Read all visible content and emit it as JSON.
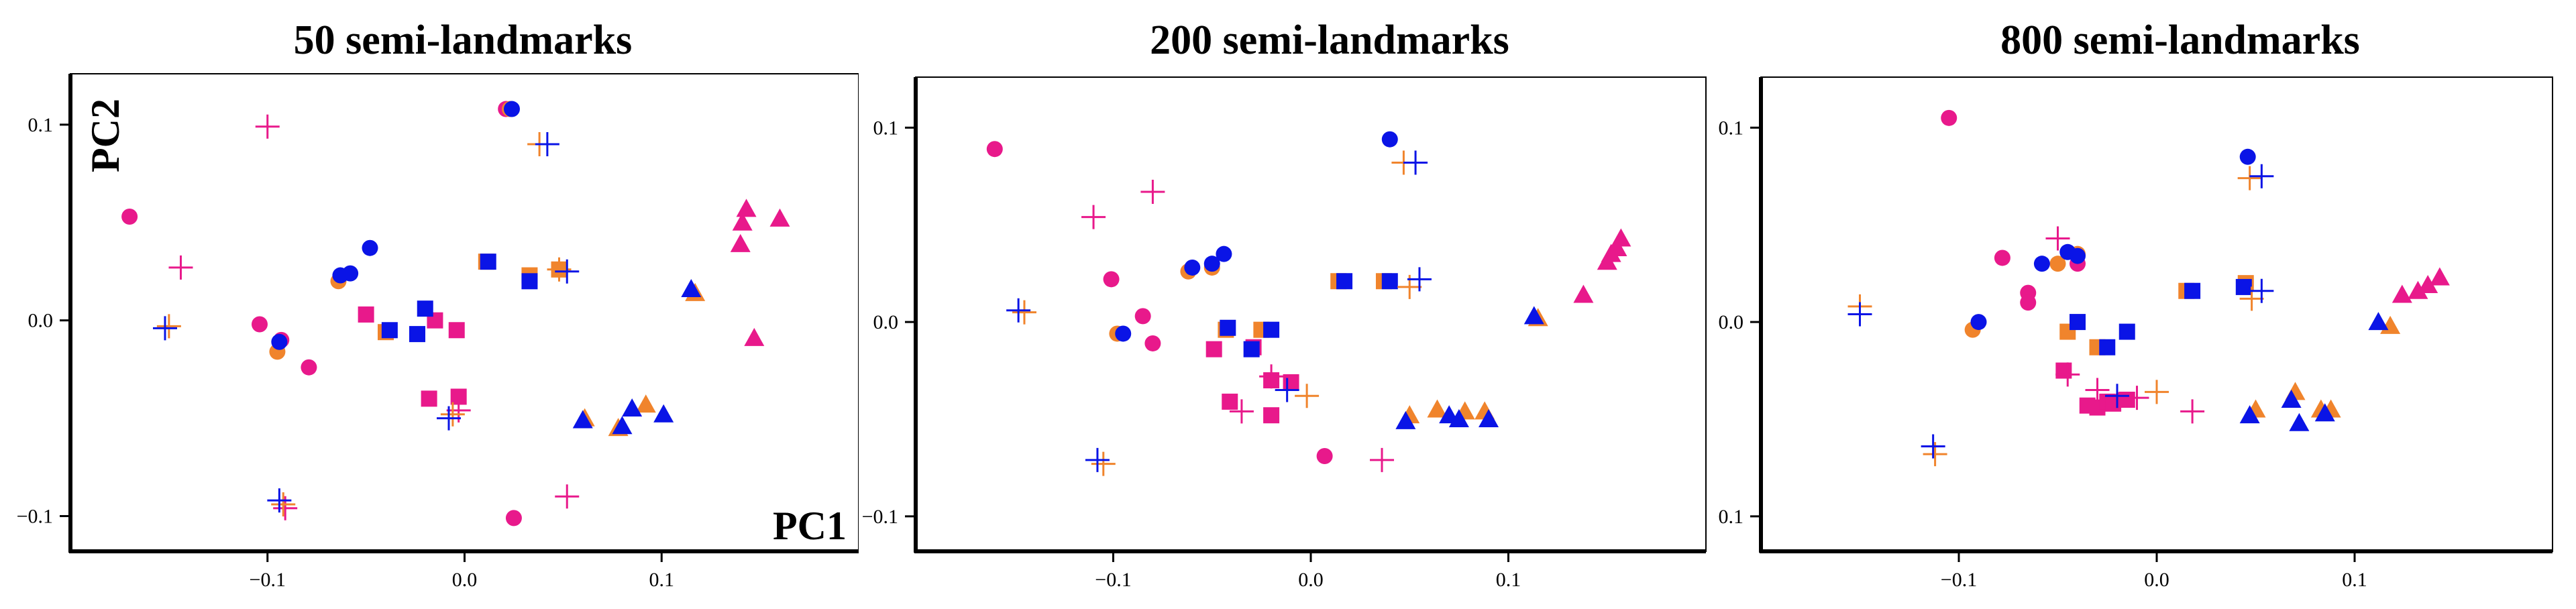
{
  "colors": {
    "pink": "#e8198b",
    "orange": "#f0842c",
    "blue": "#0a14e6"
  },
  "chart_data": [
    {
      "type": "scatter",
      "title": "50 semi-landmarks",
      "xlabel": "PC1",
      "ylabel": "PC2",
      "xlim": [
        -0.2,
        0.2
      ],
      "ylim": [
        -0.118,
        0.126
      ],
      "xticks": [
        "−0.1",
        "0.0",
        "0.1"
      ],
      "xtick_values": [
        -0.1,
        0.0,
        0.1
      ],
      "yticks": [
        "−0.1",
        "0.0",
        "0.1"
      ],
      "ytick_values": [
        -0.1,
        0.0,
        0.1
      ],
      "grid": false,
      "series": [
        {
          "shape": "circle",
          "color": "pink",
          "points": [
            [
              -0.17,
              0.053
            ],
            [
              -0.104,
              -0.002
            ],
            [
              -0.093,
              -0.01
            ],
            [
              -0.079,
              -0.024
            ],
            [
              0.025,
              -0.101
            ],
            [
              0.021,
              0.108
            ]
          ]
        },
        {
          "shape": "circle",
          "color": "orange",
          "points": [
            [
              -0.095,
              -0.016
            ],
            [
              -0.064,
              0.02
            ],
            [
              0.023,
              0.108
            ]
          ]
        },
        {
          "shape": "circle",
          "color": "blue",
          "points": [
            [
              -0.094,
              -0.011
            ],
            [
              -0.063,
              0.023
            ],
            [
              -0.058,
              0.024
            ],
            [
              -0.048,
              0.037
            ],
            [
              0.024,
              0.108
            ]
          ]
        },
        {
          "shape": "square",
          "color": "pink",
          "points": [
            [
              -0.05,
              0.003
            ],
            [
              -0.018,
              -0.04
            ],
            [
              -0.004,
              -0.005
            ],
            [
              -0.003,
              -0.039
            ],
            [
              -0.015,
              0.0
            ]
          ]
        },
        {
          "shape": "square",
          "color": "orange",
          "points": [
            [
              -0.04,
              -0.006
            ],
            [
              0.011,
              0.03
            ],
            [
              0.033,
              0.023
            ],
            [
              0.048,
              0.026
            ]
          ]
        },
        {
          "shape": "square",
          "color": "blue",
          "points": [
            [
              -0.038,
              -0.005
            ],
            [
              -0.024,
              -0.007
            ],
            [
              -0.02,
              0.006
            ],
            [
              0.012,
              0.03
            ],
            [
              0.033,
              0.02
            ]
          ]
        },
        {
          "shape": "triangle",
          "color": "pink",
          "points": [
            [
              0.14,
              0.039
            ],
            [
              0.141,
              0.05
            ],
            [
              0.143,
              0.057
            ],
            [
              0.147,
              -0.009
            ],
            [
              0.16,
              0.052
            ]
          ]
        },
        {
          "shape": "triangle",
          "color": "orange",
          "points": [
            [
              0.061,
              -0.05
            ],
            [
              0.078,
              -0.055
            ],
            [
              0.092,
              -0.043
            ],
            [
              0.117,
              0.014
            ]
          ]
        },
        {
          "shape": "triangle",
          "color": "blue",
          "points": [
            [
              0.06,
              -0.051
            ],
            [
              0.08,
              -0.054
            ],
            [
              0.085,
              -0.045
            ],
            [
              0.101,
              -0.048
            ],
            [
              0.115,
              0.016
            ]
          ]
        },
        {
          "shape": "cross",
          "color": "pink",
          "points": [
            [
              -0.1,
              0.099
            ],
            [
              -0.144,
              0.027
            ],
            [
              0.052,
              -0.09
            ],
            [
              -0.091,
              -0.096
            ],
            [
              -0.003,
              -0.046
            ]
          ]
        },
        {
          "shape": "cross",
          "color": "orange",
          "points": [
            [
              -0.15,
              -0.003
            ],
            [
              -0.092,
              -0.094
            ],
            [
              -0.006,
              -0.048
            ],
            [
              0.038,
              0.09
            ],
            [
              0.048,
              0.026
            ]
          ]
        },
        {
          "shape": "cross",
          "color": "blue",
          "points": [
            [
              -0.152,
              -0.004
            ],
            [
              -0.094,
              -0.092
            ],
            [
              -0.008,
              -0.05
            ],
            [
              0.042,
              0.09
            ],
            [
              0.052,
              0.025
            ]
          ]
        }
      ]
    },
    {
      "type": "scatter",
      "title": "200 semi-landmarks",
      "xlabel": "",
      "ylabel": "",
      "xlim": [
        -0.2,
        0.2
      ],
      "ylim": [
        -0.118,
        0.126
      ],
      "xticks": [
        "−0.1",
        "0.0",
        "0.1"
      ],
      "xtick_values": [
        -0.1,
        0.0,
        0.1
      ],
      "yticks": [
        "−0.1",
        "0.0",
        "0.1"
      ],
      "ytick_values": [
        -0.1,
        0.0,
        0.1
      ],
      "grid": false,
      "series": [
        {
          "shape": "circle",
          "color": "pink",
          "points": [
            [
              -0.16,
              0.089
            ],
            [
              -0.101,
              0.022
            ],
            [
              -0.085,
              0.003
            ],
            [
              -0.08,
              -0.011
            ],
            [
              0.007,
              -0.069
            ]
          ]
        },
        {
          "shape": "circle",
          "color": "orange",
          "points": [
            [
              -0.098,
              -0.006
            ],
            [
              -0.062,
              0.026
            ],
            [
              -0.05,
              0.028
            ]
          ]
        },
        {
          "shape": "circle",
          "color": "blue",
          "points": [
            [
              -0.095,
              -0.006
            ],
            [
              -0.06,
              0.028
            ],
            [
              -0.05,
              0.03
            ],
            [
              -0.044,
              0.035
            ],
            [
              0.04,
              0.094
            ]
          ]
        },
        {
          "shape": "square",
          "color": "pink",
          "points": [
            [
              -0.049,
              -0.014
            ],
            [
              -0.041,
              -0.041
            ],
            [
              -0.029,
              -0.013
            ],
            [
              -0.02,
              -0.03
            ],
            [
              -0.02,
              -0.048
            ],
            [
              -0.01,
              -0.031
            ]
          ]
        },
        {
          "shape": "square",
          "color": "orange",
          "points": [
            [
              -0.043,
              -0.004
            ],
            [
              -0.025,
              -0.004
            ],
            [
              0.014,
              0.021
            ],
            [
              0.037,
              0.021
            ]
          ]
        },
        {
          "shape": "square",
          "color": "blue",
          "points": [
            [
              -0.042,
              -0.003
            ],
            [
              -0.03,
              -0.014
            ],
            [
              -0.02,
              -0.004
            ],
            [
              0.017,
              0.021
            ],
            [
              0.04,
              0.021
            ]
          ]
        },
        {
          "shape": "triangle",
          "color": "pink",
          "points": [
            [
              0.138,
              0.014
            ],
            [
              0.15,
              0.031
            ],
            [
              0.152,
              0.035
            ],
            [
              0.155,
              0.038
            ],
            [
              0.157,
              0.043
            ]
          ]
        },
        {
          "shape": "triangle",
          "color": "orange",
          "points": [
            [
              0.05,
              -0.048
            ],
            [
              0.064,
              -0.045
            ],
            [
              0.078,
              -0.046
            ],
            [
              0.088,
              -0.046
            ],
            [
              0.115,
              0.002
            ]
          ]
        },
        {
          "shape": "triangle",
          "color": "blue",
          "points": [
            [
              0.048,
              -0.051
            ],
            [
              0.07,
              -0.048
            ],
            [
              0.075,
              -0.05
            ],
            [
              0.09,
              -0.05
            ],
            [
              0.113,
              0.003
            ]
          ]
        },
        {
          "shape": "cross",
          "color": "pink",
          "points": [
            [
              -0.11,
              0.054
            ],
            [
              -0.08,
              0.067
            ],
            [
              -0.035,
              -0.046
            ],
            [
              -0.02,
              -0.028
            ],
            [
              0.036,
              -0.071
            ]
          ]
        },
        {
          "shape": "cross",
          "color": "orange",
          "points": [
            [
              -0.145,
              0.005
            ],
            [
              -0.105,
              -0.073
            ],
            [
              -0.002,
              -0.038
            ],
            [
              0.047,
              0.082
            ],
            [
              0.05,
              0.018
            ]
          ]
        },
        {
          "shape": "cross",
          "color": "blue",
          "points": [
            [
              -0.148,
              0.006
            ],
            [
              -0.108,
              -0.071
            ],
            [
              -0.012,
              -0.035
            ],
            [
              0.053,
              0.082
            ],
            [
              0.055,
              0.022
            ]
          ]
        }
      ]
    },
    {
      "type": "scatter",
      "title": "800 semi-landmarks",
      "xlabel": "",
      "ylabel": "",
      "xlim": [
        -0.2,
        0.2
      ],
      "ylim": [
        -0.118,
        0.126
      ],
      "xticks": [
        "−0.1",
        "0.0",
        "0.1"
      ],
      "xtick_values": [
        -0.1,
        0.0,
        0.1
      ],
      "yticks": [
        "−0.1",
        "0.0",
        "0.1"
      ],
      "ytick_values": [
        -0.1,
        0.0,
        0.1
      ],
      "grid": false,
      "series": [
        {
          "shape": "circle",
          "color": "pink",
          "points": [
            [
              -0.105,
              0.105
            ],
            [
              -0.065,
              0.015
            ],
            [
              -0.065,
              0.01
            ],
            [
              -0.078,
              0.033
            ],
            [
              -0.04,
              0.03
            ],
            [
              -0.018,
              -0.04
            ]
          ]
        },
        {
          "shape": "circle",
          "color": "orange",
          "points": [
            [
              -0.093,
              -0.004
            ],
            [
              -0.05,
              0.03
            ],
            [
              -0.04,
              0.035
            ]
          ]
        },
        {
          "shape": "circle",
          "color": "blue",
          "points": [
            [
              -0.09,
              0.0
            ],
            [
              -0.058,
              0.03
            ],
            [
              -0.045,
              0.036
            ],
            [
              -0.04,
              0.034
            ],
            [
              0.046,
              0.085
            ]
          ]
        },
        {
          "shape": "square",
          "color": "pink",
          "points": [
            [
              -0.047,
              -0.025
            ],
            [
              -0.035,
              -0.043
            ],
            [
              -0.03,
              -0.044
            ],
            [
              -0.025,
              -0.041
            ],
            [
              -0.022,
              -0.042
            ],
            [
              -0.015,
              -0.04
            ]
          ]
        },
        {
          "shape": "square",
          "color": "orange",
          "points": [
            [
              -0.045,
              -0.005
            ],
            [
              -0.03,
              -0.013
            ],
            [
              0.015,
              0.016
            ],
            [
              0.045,
              0.02
            ]
          ]
        },
        {
          "shape": "square",
          "color": "blue",
          "points": [
            [
              -0.04,
              0.0
            ],
            [
              -0.025,
              -0.013
            ],
            [
              -0.015,
              -0.005
            ],
            [
              0.018,
              0.016
            ],
            [
              0.044,
              0.018
            ]
          ]
        },
        {
          "shape": "triangle",
          "color": "pink",
          "points": [
            [
              0.124,
              0.014
            ],
            [
              0.132,
              0.016
            ],
            [
              0.137,
              0.019
            ],
            [
              0.143,
              0.023
            ]
          ]
        },
        {
          "shape": "triangle",
          "color": "orange",
          "points": [
            [
              0.05,
              -0.045
            ],
            [
              0.07,
              -0.036
            ],
            [
              0.083,
              -0.045
            ],
            [
              0.088,
              -0.045
            ],
            [
              0.118,
              -0.002
            ]
          ]
        },
        {
          "shape": "triangle",
          "color": "blue",
          "points": [
            [
              0.047,
              -0.048
            ],
            [
              0.068,
              -0.04
            ],
            [
              0.072,
              -0.052
            ],
            [
              0.085,
              -0.047
            ],
            [
              0.112,
              0.0
            ]
          ]
        },
        {
          "shape": "cross",
          "color": "pink",
          "points": [
            [
              -0.05,
              0.043
            ],
            [
              -0.045,
              -0.027
            ],
            [
              -0.03,
              -0.035
            ],
            [
              -0.01,
              -0.039
            ],
            [
              0.018,
              -0.046
            ]
          ]
        },
        {
          "shape": "cross",
          "color": "orange",
          "points": [
            [
              -0.15,
              0.008
            ],
            [
              -0.112,
              -0.068
            ],
            [
              0.0,
              -0.036
            ],
            [
              0.047,
              0.074
            ],
            [
              0.048,
              0.012
            ]
          ]
        },
        {
          "shape": "cross",
          "color": "blue",
          "points": [
            [
              -0.15,
              0.004
            ],
            [
              -0.113,
              -0.064
            ],
            [
              -0.02,
              -0.038
            ],
            [
              0.053,
              0.075
            ],
            [
              0.053,
              0.016
            ]
          ]
        }
      ]
    }
  ]
}
